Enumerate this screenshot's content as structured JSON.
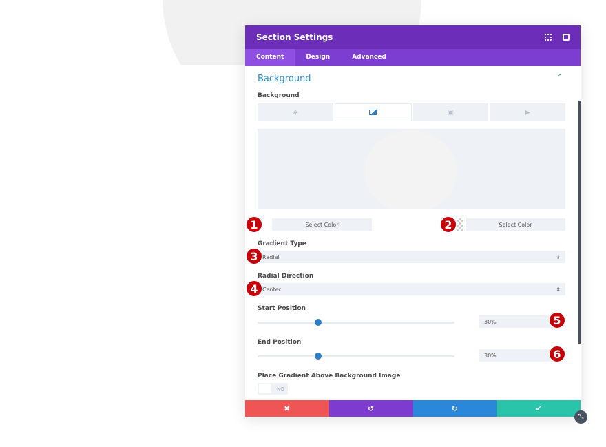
{
  "header": {
    "title": "Section Settings"
  },
  "tabs": [
    {
      "label": "Content"
    },
    {
      "label": "Design"
    },
    {
      "label": "Advanced"
    }
  ],
  "section": {
    "title": "Background"
  },
  "background": {
    "label": "Background",
    "tabs": [
      "color",
      "gradient",
      "image",
      "video"
    ]
  },
  "color_pickers": [
    {
      "label": "Select Color",
      "badge": "1"
    },
    {
      "label": "Select Color",
      "badge": "2"
    }
  ],
  "gradient_type": {
    "label": "Gradient Type",
    "value": "Radial",
    "badge": "3"
  },
  "radial_direction": {
    "label": "Radial Direction",
    "value": "Center",
    "badge": "4"
  },
  "start_position": {
    "label": "Start Position",
    "value": "30%",
    "percent": 30,
    "badge": "5"
  },
  "end_position": {
    "label": "End Position",
    "value": "30%",
    "percent": 30,
    "badge": "6"
  },
  "place_above": {
    "label": "Place Gradient Above Background Image",
    "value": "NO"
  },
  "footer": {
    "cancel": "✖",
    "undo": "↺",
    "redo": "↻",
    "save": "✔"
  },
  "colors": {
    "header": "#6c2eb9",
    "tabs": "#7b3ed1",
    "cancel": "#ef5555",
    "undo": "#7e3bd0",
    "redo": "#2b87da",
    "save": "#29c4a9"
  }
}
